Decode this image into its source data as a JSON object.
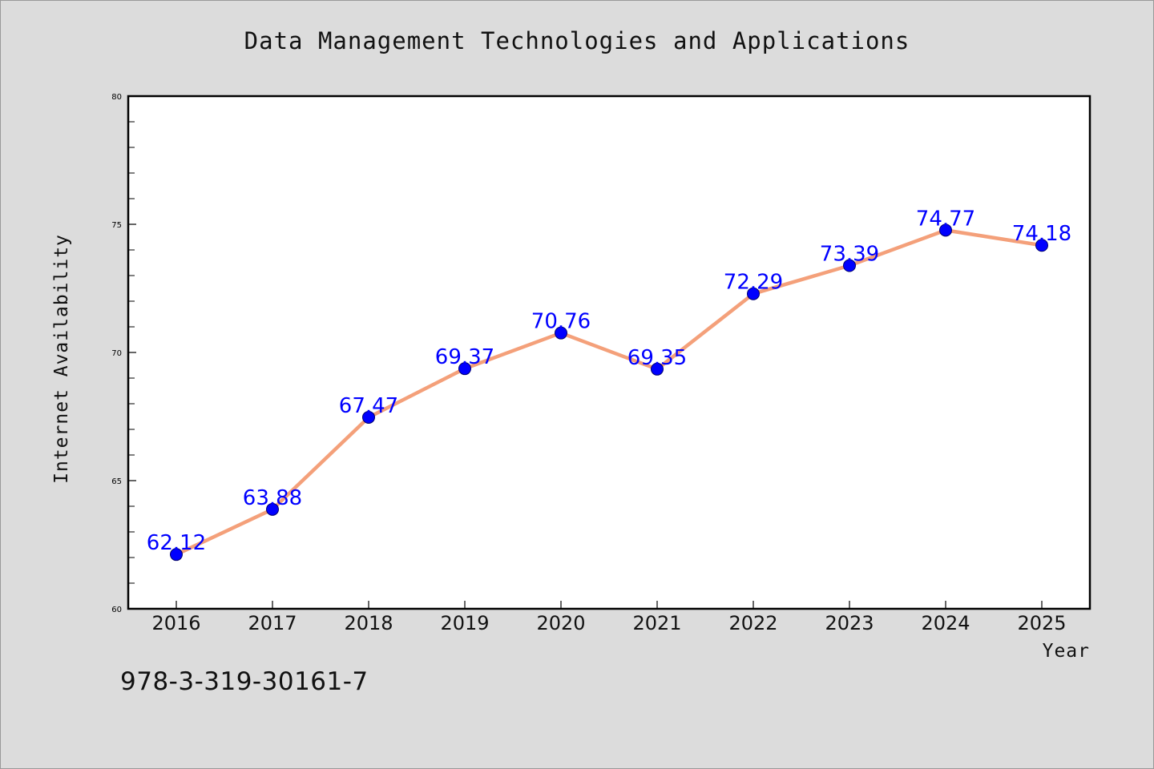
{
  "chart_data": {
    "type": "line",
    "title": "Data Management Technologies and Applications",
    "xlabel": "Year",
    "ylabel": "Internet Availability",
    "categories": [
      "2016",
      "2017",
      "2018",
      "2019",
      "2020",
      "2021",
      "2022",
      "2023",
      "2024",
      "2025"
    ],
    "values": [
      62.12,
      63.88,
      67.47,
      69.37,
      70.76,
      69.35,
      72.29,
      73.39,
      74.77,
      74.18
    ],
    "ylim": [
      60,
      80
    ],
    "yticks": [
      60,
      65,
      70,
      75,
      80
    ],
    "grid": false,
    "legend": "none",
    "line_color": "#f4a07a",
    "marker_color": "#0000ff"
  },
  "annotation": "978-3-319-30161-7"
}
